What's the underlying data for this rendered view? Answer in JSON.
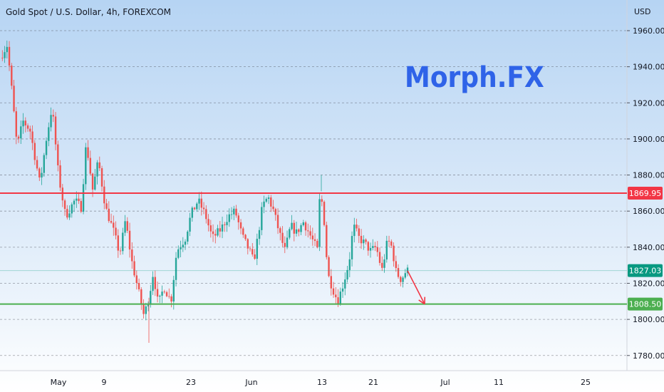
{
  "chart_title": "Gold Spot / U.S. Dollar, 4h, FOREXCOM",
  "brand": "Morph.FX",
  "currency": "USD",
  "colors": {
    "up": "#26a69a",
    "down": "#ef5350",
    "resistance": "#f23645",
    "support": "#4caf50",
    "arrow": "#f23645",
    "brand": "#2f63e8"
  },
  "chart_data": {
    "type": "candlestick",
    "timeframe": "4h",
    "ylim": [
      1774,
      1972
    ],
    "y_ticks": [
      1960,
      1940,
      1920,
      1900,
      1880,
      1860,
      1840,
      1820,
      1800,
      1780
    ],
    "y_tick_labels": [
      "1960.00",
      "1940.00",
      "1920.00",
      "1900.00",
      "1880.00",
      "1860.00",
      "1840.00",
      "1820.00",
      "1800.00",
      "1780.00"
    ],
    "grid": "horizontal dashed",
    "x_tick_labels": [
      "May",
      "9",
      "23",
      "Jun",
      "13",
      "21",
      "Jul",
      "11",
      "25"
    ],
    "series_waypoints": [
      {
        "t": 0,
        "p": 1945
      },
      {
        "t": 10,
        "p": 1952
      },
      {
        "t": 17,
        "p": 1925
      },
      {
        "t": 24,
        "p": 1895
      },
      {
        "t": 32,
        "p": 1910
      },
      {
        "t": 42,
        "p": 1905
      },
      {
        "t": 56,
        "p": 1875
      },
      {
        "t": 65,
        "p": 1900
      },
      {
        "t": 73,
        "p": 1918
      },
      {
        "t": 82,
        "p": 1880
      },
      {
        "t": 92,
        "p": 1857
      },
      {
        "t": 105,
        "p": 1866
      },
      {
        "t": 114,
        "p": 1862
      },
      {
        "t": 121,
        "p": 1898
      },
      {
        "t": 130,
        "p": 1872
      },
      {
        "t": 138,
        "p": 1888
      },
      {
        "t": 148,
        "p": 1862
      },
      {
        "t": 160,
        "p": 1848
      },
      {
        "t": 168,
        "p": 1836
      },
      {
        "t": 176,
        "p": 1855
      },
      {
        "t": 185,
        "p": 1832
      },
      {
        "t": 193,
        "p": 1818
      },
      {
        "t": 202,
        "p": 1802
      },
      {
        "t": 209,
        "p": 1812
      },
      {
        "t": 215,
        "p": 1826
      },
      {
        "t": 222,
        "p": 1808
      },
      {
        "t": 230,
        "p": 1818
      },
      {
        "t": 240,
        "p": 1810
      },
      {
        "t": 248,
        "p": 1838
      },
      {
        "t": 260,
        "p": 1845
      },
      {
        "t": 268,
        "p": 1858
      },
      {
        "t": 278,
        "p": 1866
      },
      {
        "t": 288,
        "p": 1858
      },
      {
        "t": 298,
        "p": 1845
      },
      {
        "t": 310,
        "p": 1850
      },
      {
        "t": 320,
        "p": 1857
      },
      {
        "t": 330,
        "p": 1860
      },
      {
        "t": 340,
        "p": 1846
      },
      {
        "t": 350,
        "p": 1838
      },
      {
        "t": 356,
        "p": 1832
      },
      {
        "t": 362,
        "p": 1846
      },
      {
        "t": 368,
        "p": 1862
      },
      {
        "t": 376,
        "p": 1868
      },
      {
        "t": 384,
        "p": 1860
      },
      {
        "t": 392,
        "p": 1848
      },
      {
        "t": 400,
        "p": 1838
      },
      {
        "t": 408,
        "p": 1852
      },
      {
        "t": 416,
        "p": 1848
      },
      {
        "t": 426,
        "p": 1854
      },
      {
        "t": 436,
        "p": 1846
      },
      {
        "t": 446,
        "p": 1838
      },
      {
        "t": 449,
        "p": 1871
      },
      {
        "t": 454,
        "p": 1860
      },
      {
        "t": 460,
        "p": 1825
      },
      {
        "t": 468,
        "p": 1816
      },
      {
        "t": 474,
        "p": 1810
      },
      {
        "t": 482,
        "p": 1820
      },
      {
        "t": 490,
        "p": 1832
      },
      {
        "t": 496,
        "p": 1852
      },
      {
        "t": 504,
        "p": 1845
      },
      {
        "t": 512,
        "p": 1842
      },
      {
        "t": 520,
        "p": 1838
      },
      {
        "t": 528,
        "p": 1840
      },
      {
        "t": 536,
        "p": 1827
      },
      {
        "t": 544,
        "p": 1844
      },
      {
        "t": 550,
        "p": 1840
      },
      {
        "t": 556,
        "p": 1826
      },
      {
        "t": 563,
        "p": 1822
      },
      {
        "t": 570,
        "p": 1827
      }
    ],
    "horizontal_lines": [
      {
        "name": "resistance",
        "value": 1869.95,
        "label": "1869.95",
        "color": "#f23645"
      },
      {
        "name": "support",
        "value": 1808.5,
        "label": "1808.50",
        "color": "#4caf50"
      },
      {
        "name": "last-price",
        "value": 1827.03,
        "label": "1827.03",
        "color": "#089981"
      }
    ],
    "annotation": {
      "type": "arrow",
      "from": [
        570,
        1827
      ],
      "to": [
        596,
        1808.5
      ],
      "color": "#f23645"
    }
  }
}
